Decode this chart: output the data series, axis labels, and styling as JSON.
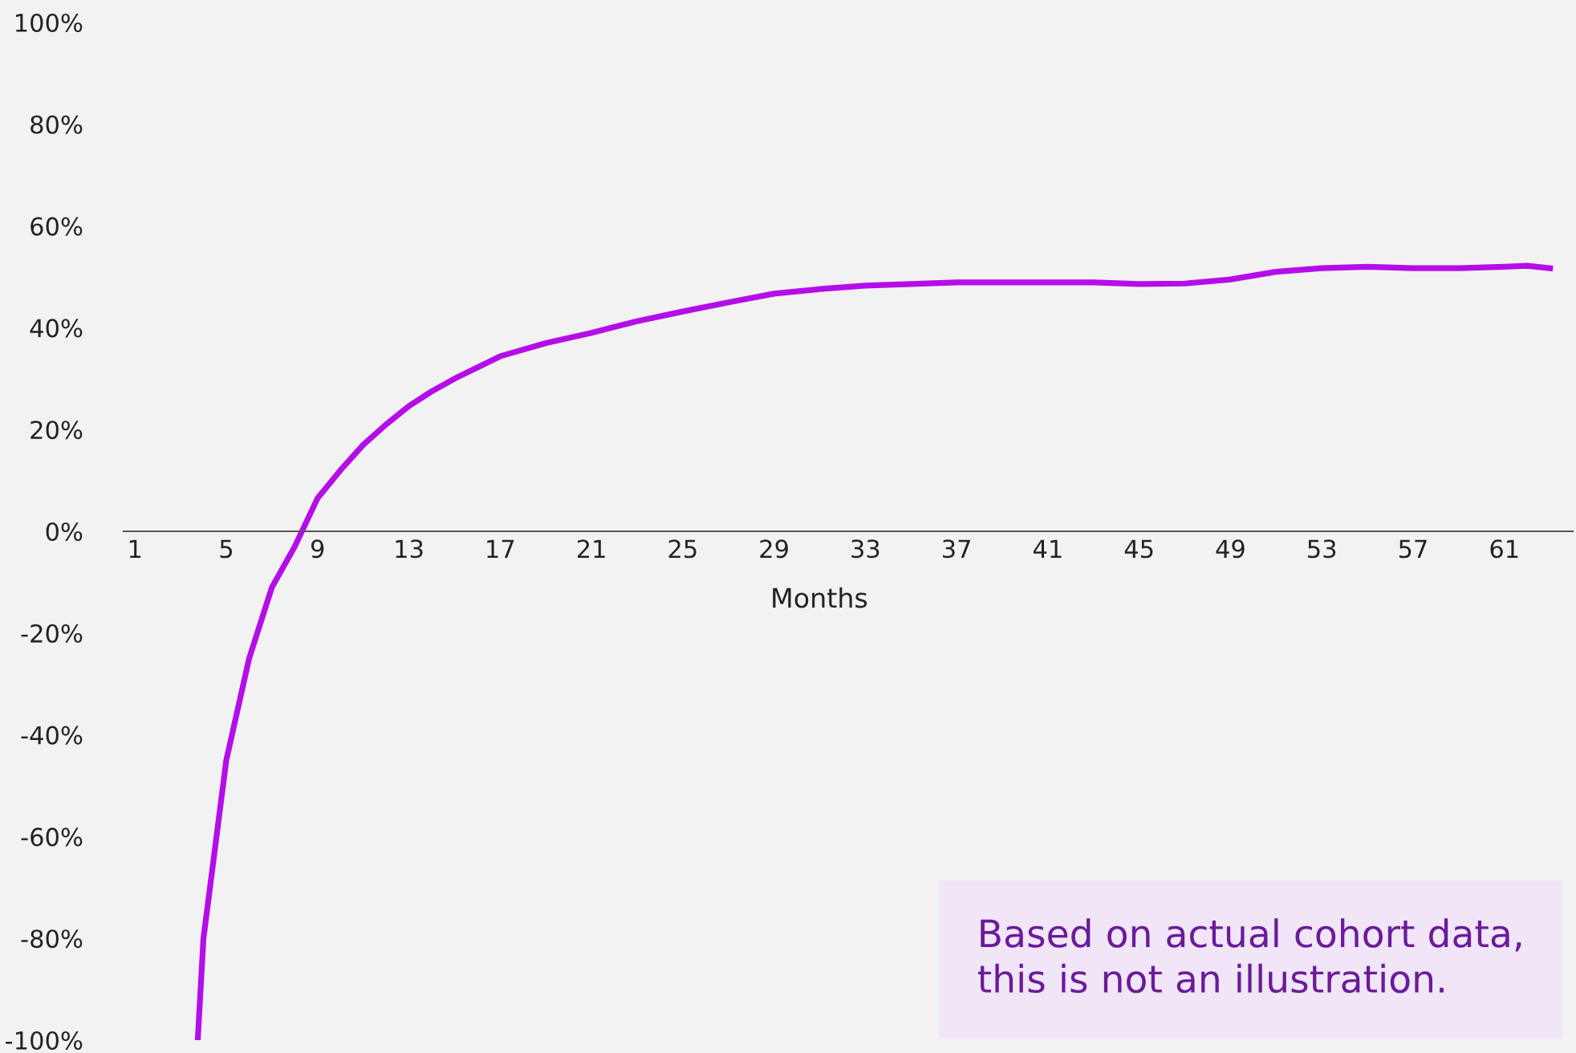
{
  "chart_data": {
    "type": "line",
    "xlabel": "Months",
    "x": [
      3.75,
      4,
      5,
      6,
      7,
      8,
      9,
      10,
      11,
      12,
      13,
      14,
      15,
      17,
      19,
      21,
      23,
      25,
      27,
      29,
      31,
      33,
      35,
      37,
      41,
      43,
      45,
      47,
      49,
      51,
      53,
      55,
      57,
      59,
      61,
      62,
      63
    ],
    "series": [
      {
        "color": "#b40ee8",
        "values": [
          -100,
          -80,
          -45,
          -25,
          -11,
          -3,
          6.5,
          12,
          17,
          21,
          24.6,
          27.5,
          30,
          34.4,
          37,
          39,
          41.3,
          43.2,
          45,
          46.7,
          47.6,
          48.3,
          48.6,
          48.9,
          48.9,
          48.9,
          48.6,
          48.7,
          49.5,
          51,
          51.7,
          52,
          51.7,
          51.7,
          52,
          52.2,
          51.7
        ]
      }
    ],
    "xlim": [
      0.5,
      64
    ],
    "xticks": [
      1,
      5,
      9,
      13,
      17,
      21,
      25,
      29,
      33,
      37,
      41,
      45,
      49,
      53,
      57,
      61
    ],
    "ylim": [
      -100,
      100
    ],
    "yticks": [
      {
        "value": -100,
        "label": "-100%"
      },
      {
        "value": -80,
        "label": "-80%"
      },
      {
        "value": -60,
        "label": "-60%"
      },
      {
        "value": -40,
        "label": "-40%"
      },
      {
        "value": -20,
        "label": "-20%"
      },
      {
        "value": 0,
        "label": "0%"
      },
      {
        "value": 20,
        "label": "20%"
      },
      {
        "value": 40,
        "label": "40%"
      },
      {
        "value": 60,
        "label": "60%"
      },
      {
        "value": 80,
        "label": "80%"
      },
      {
        "value": 100,
        "label": "100%"
      }
    ],
    "grid": false,
    "legend": false,
    "marker": "none",
    "line_style": "solid",
    "annotations": [
      "Based on actual cohort data,\nthis is not an illustration."
    ]
  }
}
